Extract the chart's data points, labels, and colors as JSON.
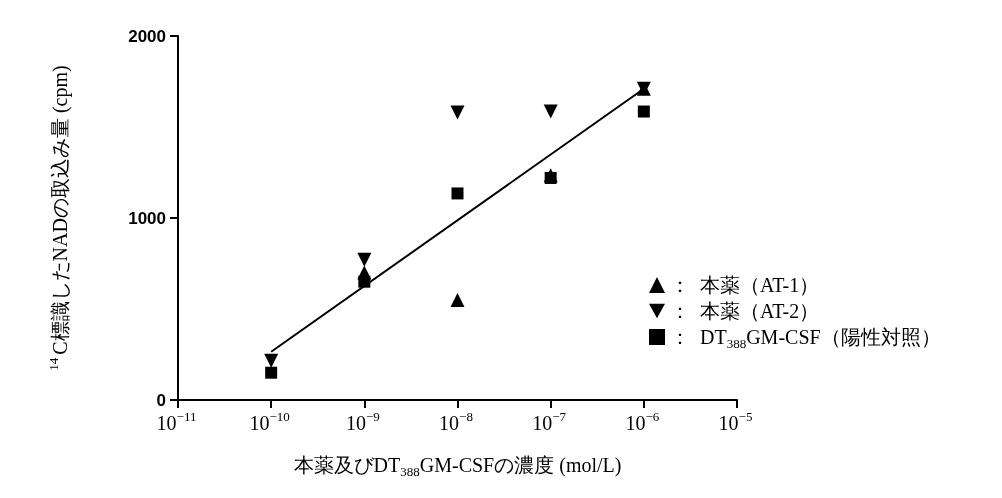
{
  "chart_data": {
    "type": "scatter",
    "xlabel": "本薬及びDT$_{388}$GM-CSFの濃度 (mol/L)",
    "ylabel": "$^{14}$C標識したNADの取込み量 (cpm)",
    "log": "x",
    "xlim": [
      1e-11,
      1e-05
    ],
    "xticks": [
      {
        "value": 1e-11,
        "label": "10$^{−11}$"
      },
      {
        "value": 1e-10,
        "label": "10$^{−10}$"
      },
      {
        "value": 1e-09,
        "label": "10$^{−9}$"
      },
      {
        "value": 1e-08,
        "label": "10$^{−8}$"
      },
      {
        "value": 1e-07,
        "label": "10$^{−7}$"
      },
      {
        "value": 1e-06,
        "label": "10$^{−6}$"
      },
      {
        "value": 1e-05,
        "label": "10$^{−5}$"
      }
    ],
    "ylim": [
      0,
      2000
    ],
    "yticks": [
      0,
      1000,
      2000
    ],
    "grid": false,
    "legend": "right",
    "x": [
      1e-10,
      1e-09,
      1e-08,
      1e-07,
      1e-06
    ],
    "series": [
      {
        "name": "：  本薬（AT-1）",
        "color": "#000000",
        "marker": "triangle",
        "values": [
          null,
          700,
          550,
          1235,
          1710
        ]
      },
      {
        "name": "：  本薬（AT-2）",
        "color": "#000000",
        "marker": "triangle-down",
        "values": [
          215,
          770,
          1580,
          1585,
          1710
        ]
      },
      {
        "name": "：  DT$_{388}$GM-CSF（陽性対照）",
        "color": "#000000",
        "marker": "square",
        "values": [
          150,
          650,
          1135,
          1220,
          1585
        ]
      },
      {
        "type": "line",
        "color": "#000000",
        "marker": "none",
        "line_style": "solid",
        "x": [
          1e-10,
          1e-06
        ],
        "values": [
          265,
          1710
        ]
      }
    ]
  }
}
